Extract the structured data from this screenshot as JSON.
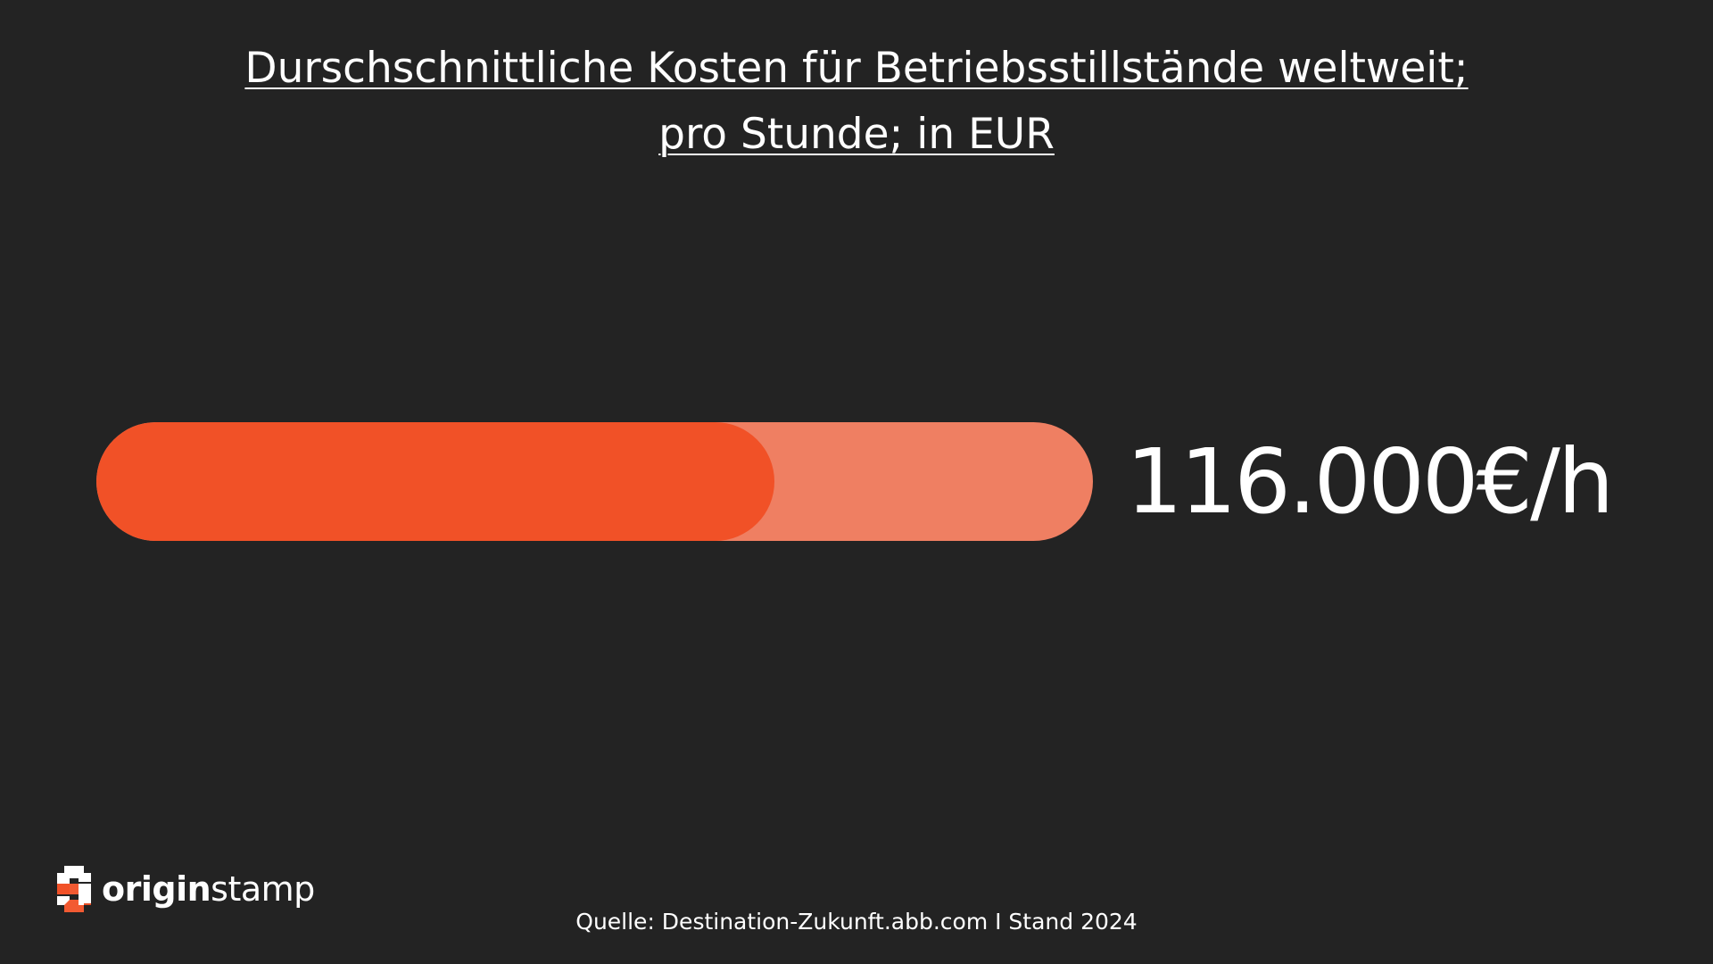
{
  "title": {
    "line1": "Durschschnittliche Kosten für Betriebsstillstände weltweit;",
    "line2": "pro Stunde; in EUR"
  },
  "progress": {
    "value_label": "116.000€/h",
    "fill_fraction": 0.68,
    "fill_color": "#f15127",
    "track_color": "#ef7f62"
  },
  "source": "Quelle: Destination-Zukunft.abb.com I Stand 2024",
  "logo": {
    "bold": "origin",
    "light": "stamp"
  }
}
